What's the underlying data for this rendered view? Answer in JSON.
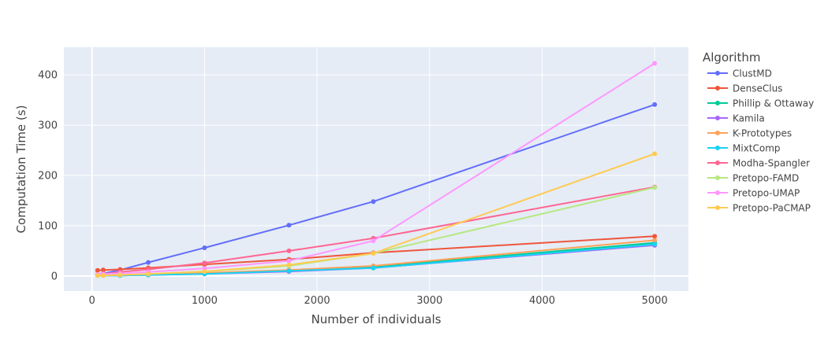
{
  "chart_data": {
    "type": "line",
    "xlabel": "Number of individuals",
    "ylabel": "Computation Time (s)",
    "legend_title": "Algorithm",
    "legend_position": "right",
    "grid": true,
    "xlim": [
      -250,
      5300
    ],
    "ylim": [
      -30,
      455
    ],
    "x_ticks": [
      0,
      1000,
      2000,
      3000,
      4000,
      5000
    ],
    "y_ticks": [
      0,
      100,
      200,
      300,
      400
    ],
    "x": [
      50,
      100,
      250,
      500,
      1000,
      1750,
      2500,
      5000
    ],
    "colors": {
      "ClustMD": "#636efa",
      "DenseClus": "#ef553b",
      "Phillip & Ottaway": "#00cc96",
      "Kamila": "#ab63fa",
      "K-Prototypes": "#ffa15a",
      "MixtComp": "#19d3f3",
      "Modha-Spangler": "#ff6692",
      "Pretopo-FAMD": "#b6e880",
      "Pretopo-UMAP": "#ff97ff",
      "Pretopo-PaCMAP": "#fecb52"
    },
    "series": [
      {
        "name": "ClustMD",
        "values": [
          3,
          5,
          12,
          27,
          56,
          101,
          148,
          341
        ]
      },
      {
        "name": "DenseClus",
        "values": [
          11,
          12,
          13,
          16,
          23,
          33,
          46,
          79
        ]
      },
      {
        "name": "Phillip & Ottaway",
        "values": [
          1,
          1,
          1,
          2,
          5,
          11,
          18,
          66
        ]
      },
      {
        "name": "Kamila",
        "values": [
          1,
          1,
          1,
          2,
          4,
          9,
          16,
          61
        ]
      },
      {
        "name": "K-Prototypes",
        "values": [
          1,
          1,
          2,
          3,
          6,
          12,
          20,
          71
        ]
      },
      {
        "name": "MixtComp",
        "values": [
          1,
          1,
          1,
          2,
          4,
          10,
          16,
          63
        ]
      },
      {
        "name": "Modha-Spangler",
        "values": [
          2,
          4,
          8,
          13,
          26,
          50,
          75,
          177
        ]
      },
      {
        "name": "Pretopo-FAMD",
        "values": [
          1,
          1,
          2,
          4,
          9,
          20,
          45,
          176
        ]
      },
      {
        "name": "Pretopo-UMAP",
        "values": [
          3,
          4,
          5,
          8,
          15,
          30,
          70,
          423
        ]
      },
      {
        "name": "Pretopo-PaCMAP",
        "values": [
          1,
          1,
          2,
          4,
          9,
          22,
          45,
          243
        ]
      }
    ]
  }
}
